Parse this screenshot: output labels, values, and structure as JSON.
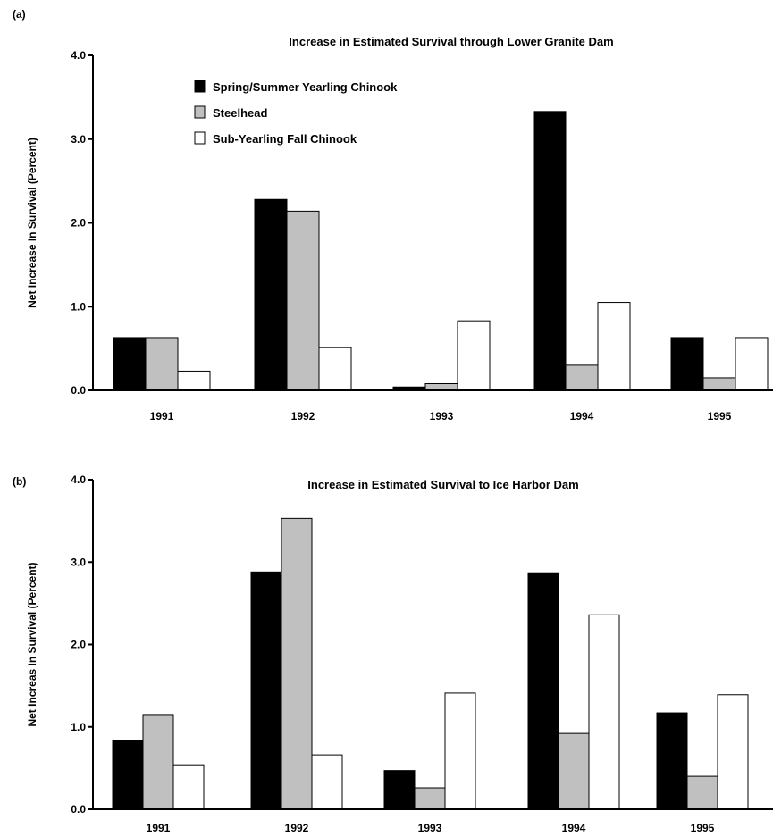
{
  "colors": {
    "spring_summer": "#000000",
    "steelhead": "#c0c0c0",
    "sub_yearling": "#ffffff",
    "axis": "#000000"
  },
  "legend": [
    {
      "label": "Spring/Summer Yearling Chinook",
      "color": "#000000"
    },
    {
      "label": "Steelhead",
      "color": "#c0c0c0"
    },
    {
      "label": "Sub-Yearling Fall Chinook",
      "color": "#ffffff"
    }
  ],
  "chart_data": [
    {
      "type": "bar",
      "panel_label": "(a)",
      "title": "Increase in Estimated Survival through Lower Granite Dam",
      "xlabel": "",
      "ylabel": "Net Increase In Survival (Percent)",
      "ylim": [
        0,
        4.0
      ],
      "yticks": [
        "0.0",
        "1.0",
        "2.0",
        "3.0",
        "4.0"
      ],
      "categories": [
        "1991",
        "1992",
        "1993",
        "1994",
        "1995"
      ],
      "series": [
        {
          "name": "Spring/Summer Yearling Chinook",
          "values": [
            0.63,
            2.28,
            0.04,
            3.33,
            0.63
          ]
        },
        {
          "name": "Steelhead",
          "values": [
            0.63,
            2.14,
            0.08,
            0.3,
            0.15
          ]
        },
        {
          "name": "Sub-Yearling Fall Chinook",
          "values": [
            0.23,
            0.51,
            0.83,
            1.05,
            0.63
          ]
        }
      ],
      "legend_position": "top-left",
      "grid": false
    },
    {
      "type": "bar",
      "panel_label": "(b)",
      "title": "Increase in Estimated Survival to Ice Harbor Dam",
      "xlabel": "",
      "ylabel": "Net Increas In Survival (Percent)",
      "ylim": [
        0,
        4.0
      ],
      "yticks": [
        "0.0",
        "1.0",
        "2.0",
        "3.0",
        "4.0"
      ],
      "categories": [
        "1991",
        "1992",
        "1993",
        "1994",
        "1995"
      ],
      "series": [
        {
          "name": "Spring/Summer Yearling Chinook",
          "values": [
            0.84,
            2.88,
            0.47,
            2.87,
            1.17
          ]
        },
        {
          "name": "Steelhead",
          "values": [
            1.15,
            3.53,
            0.26,
            0.92,
            0.4
          ]
        },
        {
          "name": "Sub-Yearling Fall Chinook",
          "values": [
            0.54,
            0.66,
            1.41,
            2.36,
            1.39
          ]
        }
      ],
      "grid": false
    }
  ]
}
